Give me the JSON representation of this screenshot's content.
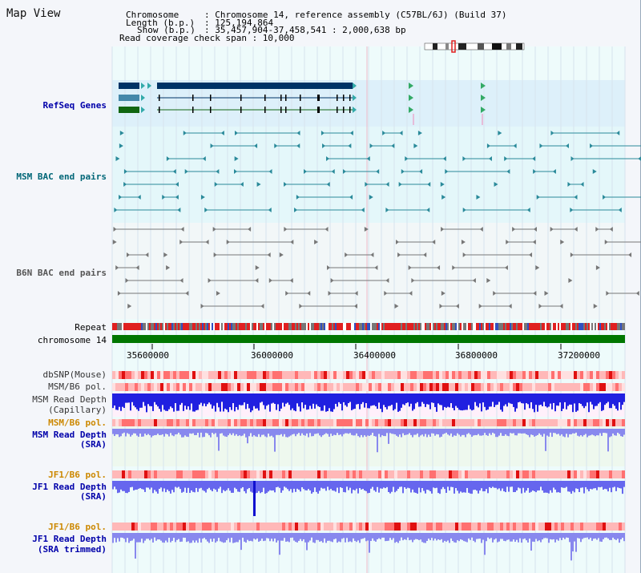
{
  "title": "Map View",
  "header": {
    "chromosome_key": "Chromosome",
    "chromosome_val": ": Chromosome 14, reference assembly (C57BL/6J) (Build 37)",
    "length_key": "Length (b.p.)",
    "length_val": ": 125,194,864",
    "show_key": "Show (b.p.)",
    "show_val": ": 35,457,904-37,458,541 : 2,000,638 bp",
    "coverage": "Read coverage check span : 10,000"
  },
  "tracks": {
    "refseq": "RefSeq Genes",
    "msm_bac": "MSM BAC end pairs",
    "b6n_bac": "B6N BAC end pairs",
    "repeat": "Repeat",
    "chromosome": "chromosome 14",
    "dbsnp": "dbSNP(Mouse)",
    "msm_b6_pol1": "MSM/B6 pol.",
    "msm_depth_cap_1": "MSM Read Depth",
    "msm_depth_cap_2": "(Capillary)",
    "msm_b6_pol2": "MSM/B6 pol.",
    "msm_depth_sra_1": "MSM Read Depth",
    "msm_depth_sra_2": "(SRA)",
    "jf1_b6_pol1": "JF1/B6 pol.",
    "jf1_depth_sra_1": "JF1 Read Depth",
    "jf1_depth_sra_2": "(SRA)",
    "jf1_b6_pol2": "JF1/B6 pol.",
    "jf1_depth_trim_1": "JF1 Read Depth",
    "jf1_depth_trim_2": "(SRA trimmed)"
  },
  "axis": {
    "ticks": [
      "35600000",
      "36000000",
      "36400000",
      "36800000",
      "37200000"
    ]
  },
  "colors": {
    "refseq": "#0000aa",
    "msm": "#006677",
    "b6n": "#555555",
    "msm_pol": "#cc8800",
    "depth": "#0000aa",
    "jf1_pol": "#cc8800"
  }
}
